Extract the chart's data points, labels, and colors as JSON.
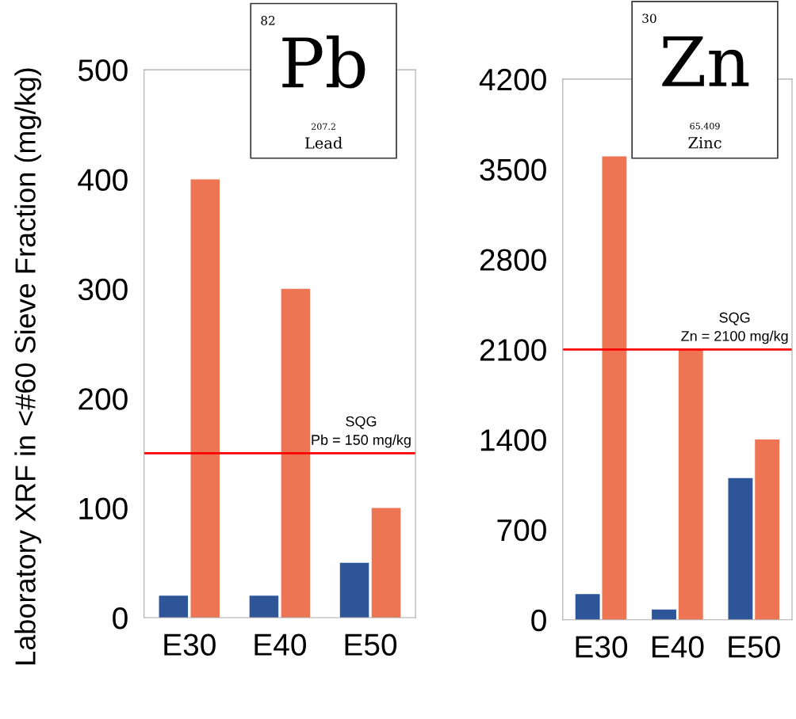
{
  "chart_data": [
    {
      "type": "bar",
      "ylabel": "Laboratory XRF in <#60 Sieve Fraction (mg/kg)",
      "categories": [
        "E30",
        "E40",
        "E50"
      ],
      "series": [
        {
          "color": "#2e5597",
          "values": [
            20,
            20,
            50
          ]
        },
        {
          "color": "#ed7553",
          "values": [
            400,
            300,
            100
          ]
        }
      ],
      "ylim": [
        0,
        500
      ],
      "yticks": [
        0,
        100,
        200,
        300,
        400,
        500
      ],
      "ref_lines": [
        {
          "axis": "y",
          "value": 150,
          "label": "SQG\nPb = 150 mg/kg",
          "color": "#ff0000"
        }
      ],
      "annotations": [
        "82",
        "Pb",
        "207.2",
        "Lead"
      ]
    },
    {
      "type": "bar",
      "categories": [
        "E30",
        "E40",
        "E50"
      ],
      "series": [
        {
          "color": "#2e5597",
          "values": [
            200,
            80,
            1100
          ]
        },
        {
          "color": "#ed7553",
          "values": [
            3600,
            2100,
            1400
          ]
        }
      ],
      "ylim": [
        0,
        4200
      ],
      "yticks": [
        0,
        700,
        1400,
        2100,
        2800,
        3500,
        4200
      ],
      "ref_lines": [
        {
          "axis": "y",
          "value": 2100,
          "label": "SQG\nZn = 2100 mg/kg",
          "color": "#ff0000"
        }
      ],
      "annotations": [
        "30",
        "Zn",
        "65.409",
        "Zinc"
      ]
    }
  ]
}
